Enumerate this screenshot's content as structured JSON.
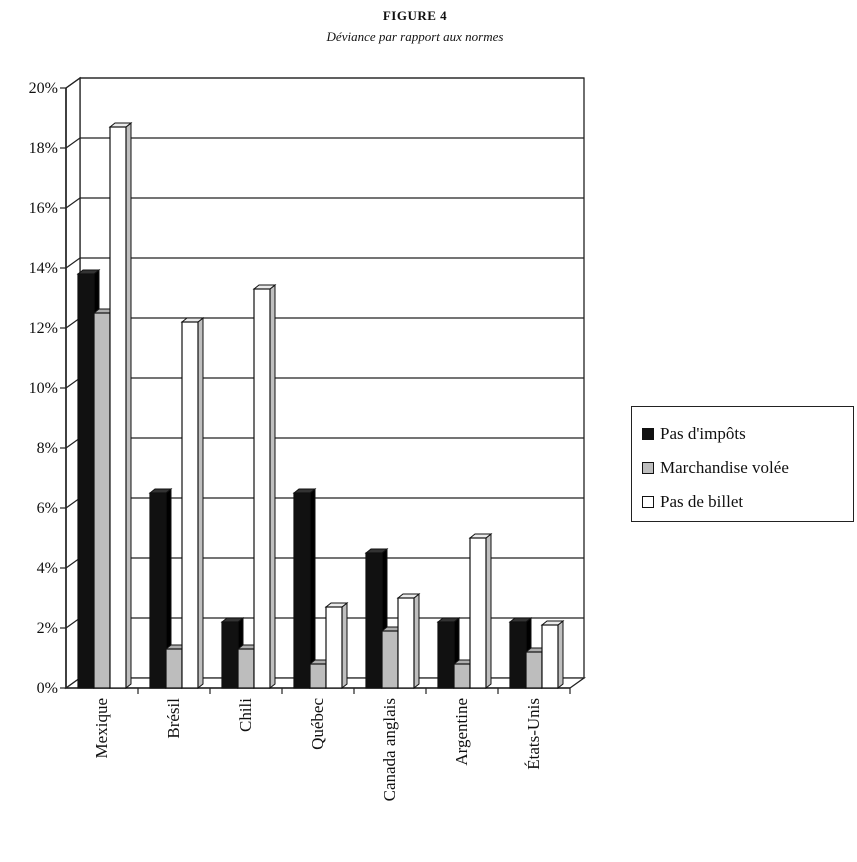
{
  "figure": {
    "title": "FIGURE 4",
    "subtitle": "Déviance par rapport aux normes"
  },
  "chart_data": {
    "type": "bar",
    "title": "Déviance par rapport aux normes",
    "categories": [
      "Mexique",
      "Brésil",
      "Chili",
      "Québec",
      "Canada anglais",
      "Argentine",
      "États-Unis"
    ],
    "series": [
      {
        "name": "Pas d'impôts",
        "color": "#111111",
        "values": [
          13.8,
          6.5,
          2.2,
          6.5,
          4.5,
          2.2,
          2.2
        ]
      },
      {
        "name": "Marchandise volée",
        "color": "#bdbdbd",
        "values": [
          12.5,
          1.3,
          1.3,
          0.8,
          1.9,
          0.8,
          1.2
        ]
      },
      {
        "name": "Pas de billet",
        "color": "#ffffff",
        "values": [
          18.7,
          12.2,
          13.3,
          2.7,
          3.0,
          5.0,
          2.1
        ]
      }
    ],
    "yticks": [
      "0%",
      "2%",
      "4%",
      "6%",
      "8%",
      "10%",
      "12%",
      "14%",
      "16%",
      "18%",
      "20%"
    ],
    "ylim": [
      0,
      20
    ],
    "grid": true,
    "legend_position": "right",
    "xlabel": "",
    "ylabel": ""
  }
}
